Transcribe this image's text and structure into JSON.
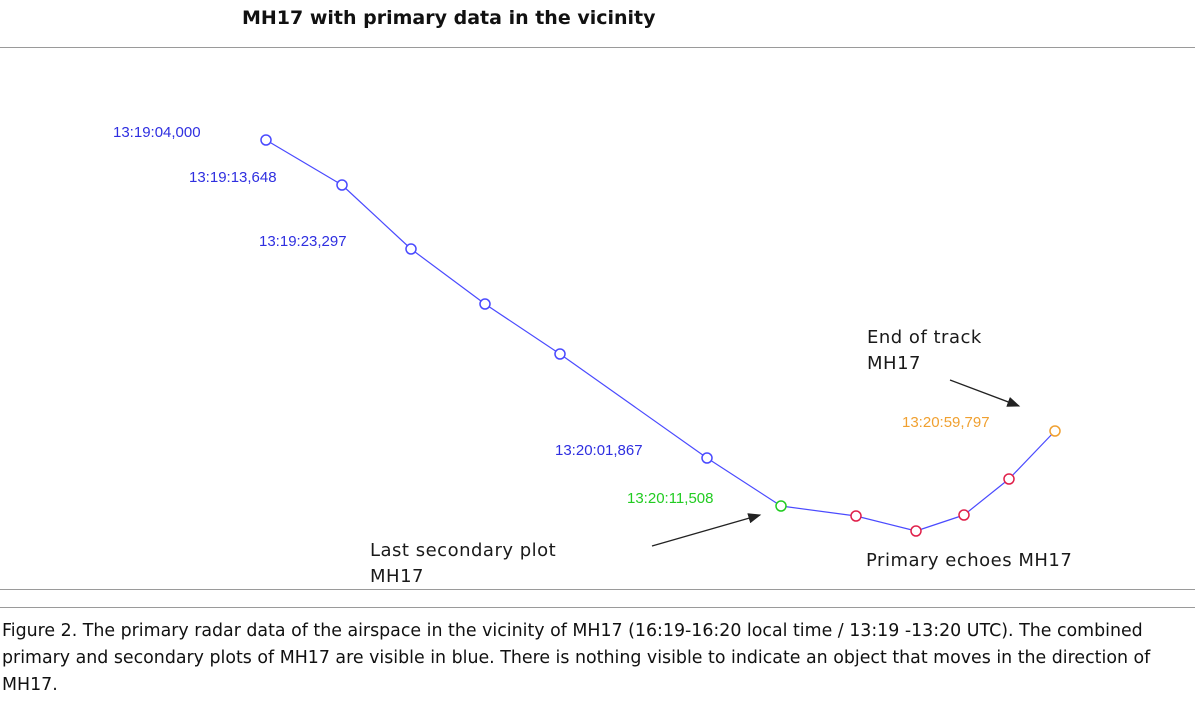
{
  "title": "MH17 with primary data in the vicinity",
  "colors": {
    "track": "#4a4aff",
    "track_label": "#2f2fe0",
    "last_secondary": "#22cc22",
    "primary": "#e0204a",
    "end": "#f0a030",
    "arrow": "#222222"
  },
  "track": {
    "secondary_plots": [
      {
        "time": "13:19:04,000"
      },
      {
        "time": "13:19:13,648"
      },
      {
        "time": "13:19:23,297"
      },
      {
        "time": ""
      },
      {
        "time": ""
      },
      {
        "time": "13:20:01,867"
      }
    ],
    "last_secondary": {
      "time": "13:20:11,508"
    },
    "primary_echoes": [
      {},
      {},
      {},
      {}
    ],
    "end_of_track": {
      "time": "13:20:59,797"
    }
  },
  "annotations": {
    "end_line1": "End of track",
    "end_line2": "MH17",
    "last_line1": "Last secondary plot",
    "last_line2": "MH17",
    "primary": "Primary echoes MH17"
  },
  "caption": "Figure 2. The primary radar data of the airspace in the vicinity of MH17 (16:19-16:20 local time / 13:19 -13:20 UTC). The combined primary and secondary plots of MH17 are visible in blue. There is nothing visible to indicate an object that moves in the direction of MH17."
}
